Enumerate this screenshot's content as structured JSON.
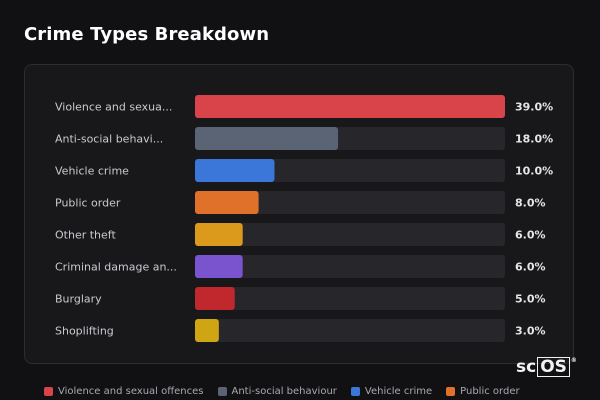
{
  "title": "Crime Types Breakdown",
  "chart_data": {
    "type": "bar",
    "orientation": "horizontal",
    "title": "Crime Types Breakdown",
    "categories": [
      "Violence and sexua...",
      "Anti-social behavi...",
      "Vehicle crime",
      "Public order",
      "Other theft",
      "Criminal damage an...",
      "Burglary",
      "Shoplifting"
    ],
    "values": [
      39.0,
      18.0,
      10.0,
      8.0,
      6.0,
      6.0,
      5.0,
      3.0
    ],
    "value_labels": [
      "39.0%",
      "18.0%",
      "10.0%",
      "8.0%",
      "6.0%",
      "6.0%",
      "5.0%",
      "3.0%"
    ],
    "colors": [
      "#d9434a",
      "#5b6474",
      "#3a77d8",
      "#e0712a",
      "#dc9a1c",
      "#7a53cf",
      "#c0282d",
      "#d0a514"
    ],
    "xlim": [
      0,
      39
    ],
    "unit": "%",
    "grid": false
  },
  "legend": [
    {
      "label": "Violence and sexual offences",
      "color": "#d9434a"
    },
    {
      "label": "Anti-social behaviour",
      "color": "#5b6474"
    },
    {
      "label": "Vehicle crime",
      "color": "#3a77d8"
    },
    {
      "label": "Public order",
      "color": "#e0712a"
    }
  ],
  "watermark": {
    "prefix": "sc",
    "boxed": "OS",
    "mark": "®"
  }
}
